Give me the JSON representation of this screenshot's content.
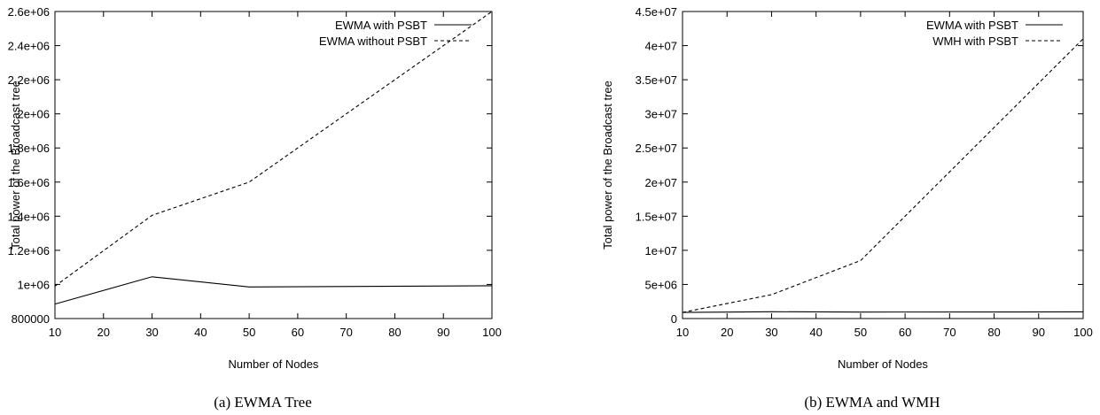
{
  "chart_data": [
    {
      "type": "line",
      "caption": "(a) EWMA Tree",
      "xlabel": "Number of Nodes",
      "ylabel": "Total power of the Broadcast tree",
      "xlim": [
        10,
        100
      ],
      "ylim": [
        800000,
        2600000
      ],
      "x_ticks": [
        10,
        20,
        30,
        40,
        50,
        60,
        70,
        80,
        90,
        100
      ],
      "x_tick_labels": [
        "10",
        "20",
        "30",
        "40",
        "50",
        "60",
        "70",
        "80",
        "90",
        "100"
      ],
      "y_ticks": [
        800000,
        1000000,
        1200000,
        1400000,
        1600000,
        1800000,
        2000000,
        2200000,
        2400000,
        2600000
      ],
      "y_tick_labels": [
        "800000",
        "1e+06",
        "1.2e+06",
        "1.4e+06",
        "1.6e+06",
        "1.8e+06",
        "2e+06",
        "2.2e+06",
        "2.4e+06",
        "2.6e+06"
      ],
      "grid": false,
      "legend_position": "top-right",
      "series": [
        {
          "name": "EWMA with PSBT",
          "style": "solid",
          "x": [
            10,
            30,
            50,
            100
          ],
          "y": [
            885000,
            1045000,
            985000,
            992000
          ]
        },
        {
          "name": "EWMA without PSBT",
          "style": "dashed",
          "x": [
            10,
            30,
            50,
            100
          ],
          "y": [
            990000,
            1405000,
            1600000,
            2600000
          ]
        }
      ]
    },
    {
      "type": "line",
      "caption": "(b) EWMA and WMH",
      "xlabel": "Number of Nodes",
      "ylabel": "Total power of the Broadcast tree",
      "xlim": [
        10,
        100
      ],
      "ylim": [
        0,
        45000000
      ],
      "x_ticks": [
        10,
        20,
        30,
        40,
        50,
        60,
        70,
        80,
        90,
        100
      ],
      "x_tick_labels": [
        "10",
        "20",
        "30",
        "40",
        "50",
        "60",
        "70",
        "80",
        "90",
        "100"
      ],
      "y_ticks": [
        0,
        5000000,
        10000000,
        15000000,
        20000000,
        25000000,
        30000000,
        35000000,
        40000000,
        45000000
      ],
      "y_tick_labels": [
        "0",
        "5e+06",
        "1e+07",
        "1.5e+07",
        "2e+07",
        "2.5e+07",
        "3e+07",
        "3.5e+07",
        "4e+07",
        "4.5e+07"
      ],
      "grid": false,
      "legend_position": "top-right",
      "series": [
        {
          "name": "EWMA with PSBT",
          "style": "solid",
          "x": [
            10,
            30,
            50,
            100
          ],
          "y": [
            900000,
            1000000,
            950000,
            980000
          ]
        },
        {
          "name": "WMH with PSBT",
          "style": "dashed",
          "x": [
            10,
            30,
            50,
            100
          ],
          "y": [
            900000,
            3500000,
            8500000,
            41000000
          ]
        }
      ]
    }
  ]
}
